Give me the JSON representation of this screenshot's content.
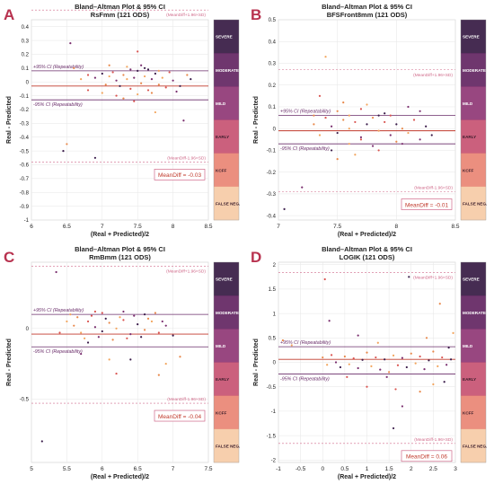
{
  "figure": {
    "ylabel": "Real - Predicted",
    "xlabel": "(Real + Predicted)/2",
    "panel_title_prefix": "Bland–Altman Plot & 95% CI",
    "colorbar_labels": [
      "SEVERE",
      "MODERATE",
      "MILD",
      "EARLY",
      "KCFF",
      "FALSE NEG."
    ],
    "colorbar_colors": [
      "#2c0f3a",
      "#5b1a5a",
      "#8a2d6e",
      "#c44a6b",
      "#e87f6d",
      "#f6c8a2"
    ],
    "colors": {
      "scatter": [
        "#e8884a",
        "#f2a45c",
        "#d9534f",
        "#7a2e6e",
        "#3a1c4a"
      ],
      "ci": "#6a2d6a",
      "sd": "#d06a8a",
      "mean": "#c0392b",
      "panel_letter": "#b8324f"
    }
  },
  "chart_data": [
    {
      "letter": "A",
      "type": "scatter",
      "title": "Bland–Altman Plot & 95% CI",
      "subtitle": "RsFmm  (121 ODS)",
      "xlabel": "(Real + Predicted)/2",
      "ylabel": "Real - Predicted",
      "xlim": [
        6,
        8.5
      ],
      "ylim": [
        -1,
        0.45
      ],
      "xticks": [
        "6",
        "6.5",
        "7",
        "7.5",
        "8",
        "8.5"
      ],
      "xtick_values": [
        6,
        6.5,
        7,
        7.5,
        8,
        8.5
      ],
      "yticks": [
        "0.4",
        "0.3",
        "0.2",
        "0.1",
        "0",
        "-0.1",
        "-0.2",
        "-0.3",
        "-0.4",
        "-0.5",
        "-0.6",
        "-0.7",
        "-0.8",
        "-0.9",
        "-1"
      ],
      "ytick_values": [
        0.4,
        0.3,
        0.2,
        0.1,
        0,
        -0.1,
        -0.2,
        -0.3,
        -0.4,
        -0.5,
        -0.6,
        -0.7,
        -0.8,
        -0.9,
        -1
      ],
      "sd_upper": 0.52,
      "sd_lower": -0.58,
      "ci_upper": 0.08,
      "ci_lower": -0.13,
      "mean": -0.03,
      "sd_upper_label": "(MeanDiff+1.96×SD)",
      "sd_lower_label": "(MeanDiff-1.96×SD)",
      "ci_upper_label": "+95% CI (Repeatability)",
      "ci_lower_label": "-95% CI (Repeatability)",
      "meandiff_label": "MeanDiff = -0.03",
      "points": [
        [
          6.6,
          0.1
        ],
        [
          6.7,
          0.02
        ],
        [
          6.8,
          0.05
        ],
        [
          6.9,
          0.03
        ],
        [
          7.0,
          0.06
        ],
        [
          7.05,
          -0.02
        ],
        [
          7.1,
          0.04
        ],
        [
          7.15,
          0.07
        ],
        [
          7.2,
          0.01
        ],
        [
          7.25,
          -0.03
        ],
        [
          7.3,
          0.05
        ],
        [
          7.35,
          0.02
        ],
        [
          7.4,
          -0.05
        ],
        [
          7.45,
          0.03
        ],
        [
          7.5,
          0.08
        ],
        [
          7.55,
          -0.01
        ],
        [
          7.6,
          0.04
        ],
        [
          7.65,
          -0.06
        ],
        [
          7.7,
          0.02
        ],
        [
          7.75,
          0.06
        ],
        [
          7.8,
          -0.02
        ],
        [
          7.85,
          0.03
        ],
        [
          7.9,
          -0.04
        ],
        [
          8.0,
          0.01
        ],
        [
          8.1,
          -0.03
        ],
        [
          8.2,
          0.05
        ],
        [
          7.0,
          -0.08
        ],
        [
          7.2,
          -0.1
        ],
        [
          7.4,
          0.09
        ],
        [
          7.6,
          0.1
        ],
        [
          7.3,
          -0.12
        ],
        [
          7.5,
          -0.09
        ],
        [
          6.8,
          -0.06
        ],
        [
          6.55,
          0.28
        ],
        [
          6.45,
          -0.5
        ],
        [
          6.5,
          -0.45
        ],
        [
          7.75,
          -0.22
        ],
        [
          7.5,
          0.22
        ],
        [
          8.15,
          -0.28
        ],
        [
          6.9,
          -0.55
        ],
        [
          7.1,
          0.12
        ],
        [
          7.35,
          0.11
        ],
        [
          7.45,
          -0.14
        ],
        [
          7.55,
          0.12
        ],
        [
          7.65,
          0.09
        ],
        [
          7.7,
          -0.08
        ],
        [
          7.8,
          0.08
        ],
        [
          7.95,
          0.07
        ],
        [
          8.05,
          -0.07
        ],
        [
          8.25,
          0.02
        ]
      ]
    },
    {
      "letter": "B",
      "type": "scatter",
      "title": "Bland–Altman Plot & 95% CI",
      "subtitle": "BFSFront8mm  (121 ODS)",
      "xlabel": "(Real + Predicted)/2",
      "ylabel": "Real - Predicted",
      "xlim": [
        7,
        8.5
      ],
      "ylim": [
        -0.42,
        0.5
      ],
      "xticks": [
        "7",
        "7.5",
        "8",
        "8.5"
      ],
      "xtick_values": [
        7,
        7.5,
        8,
        8.5
      ],
      "yticks": [
        "0.5",
        "0.4",
        "0.3",
        "0.2",
        "0.1",
        "0",
        "-0.1",
        "-0.2",
        "-0.3",
        "-0.4"
      ],
      "ytick_values": [
        0.5,
        0.4,
        0.3,
        0.2,
        0.1,
        0,
        -0.1,
        -0.2,
        -0.3,
        -0.4
      ],
      "sd_upper": 0.27,
      "sd_lower": -0.29,
      "ci_upper": 0.06,
      "ci_lower": -0.07,
      "mean": -0.01,
      "sd_upper_label": "(MeanDiff+1.96×SD)",
      "sd_lower_label": "(MeanDiff-1.96×SD)",
      "ci_upper_label": "+95% CI (Repeatability)",
      "ci_lower_label": "-95% CI (Repeatability)",
      "meandiff_label": "MeanDiff = -0.01",
      "points": [
        [
          7.3,
          0.02
        ],
        [
          7.35,
          -0.03
        ],
        [
          7.4,
          0.05
        ],
        [
          7.45,
          0.01
        ],
        [
          7.5,
          -0.02
        ],
        [
          7.55,
          0.04
        ],
        [
          7.6,
          0.0
        ],
        [
          7.65,
          0.03
        ],
        [
          7.7,
          -0.04
        ],
        [
          7.75,
          0.02
        ],
        [
          7.8,
          0.05
        ],
        [
          7.85,
          -0.01
        ],
        [
          7.9,
          0.03
        ],
        [
          7.95,
          -0.03
        ],
        [
          8.0,
          0.02
        ],
        [
          8.05,
          0.0
        ],
        [
          8.1,
          -0.02
        ],
        [
          8.15,
          0.04
        ],
        [
          8.2,
          -0.05
        ],
        [
          8.25,
          0.01
        ],
        [
          7.5,
          0.08
        ],
        [
          7.6,
          -0.07
        ],
        [
          7.7,
          0.09
        ],
        [
          7.8,
          -0.08
        ],
        [
          7.9,
          0.07
        ],
        [
          8.0,
          -0.06
        ],
        [
          7.4,
          0.33
        ],
        [
          7.35,
          0.15
        ],
        [
          7.2,
          -0.27
        ],
        [
          7.05,
          -0.37
        ],
        [
          7.5,
          -0.14
        ],
        [
          7.65,
          -0.12
        ],
        [
          7.85,
          -0.1
        ],
        [
          8.1,
          0.1
        ],
        [
          7.45,
          -0.1
        ],
        [
          7.55,
          0.12
        ],
        [
          7.75,
          0.11
        ],
        [
          7.95,
          0.06
        ],
        [
          8.2,
          0.08
        ],
        [
          8.3,
          -0.03
        ],
        [
          7.3,
          0.06
        ],
        [
          7.6,
          0.06
        ],
        [
          7.7,
          -0.05
        ],
        [
          8.05,
          -0.07
        ],
        [
          7.85,
          0.06
        ]
      ]
    },
    {
      "letter": "C",
      "type": "scatter",
      "title": "Bland–Altman Plot & 95% CI",
      "subtitle": "RmBmm  (121 ODS)",
      "xlabel": "(Real + Predicted)/2",
      "ylabel": "Real - Predicted",
      "xlim": [
        5,
        7.5
      ],
      "ylim": [
        -0.95,
        0.47
      ],
      "xticks": [
        "5",
        "5.5",
        "6",
        "6.5",
        "7",
        "7.5"
      ],
      "xtick_values": [
        5,
        5.5,
        6,
        6.5,
        7,
        7.5
      ],
      "yticks": [
        "0",
        "-0.5"
      ],
      "ytick_values": [
        0,
        -0.5
      ],
      "sd_upper": 0.44,
      "sd_lower": -0.53,
      "ci_upper": 0.1,
      "ci_lower": -0.13,
      "mean": -0.04,
      "sd_upper_label": "(MeanDiff+1.96×SD)",
      "sd_lower_label": "(MeanDiff-1.96×SD)",
      "ci_upper_label": "+95% CI (Repeatability)",
      "ci_lower_label": "-95% CI (Repeatability)",
      "meandiff_label": "MeanDiff = -0.04",
      "points": [
        [
          5.6,
          0.02
        ],
        [
          5.7,
          -0.03
        ],
        [
          5.8,
          0.05
        ],
        [
          5.9,
          0.01
        ],
        [
          6.0,
          -0.02
        ],
        [
          6.1,
          0.04
        ],
        [
          6.2,
          0.0
        ],
        [
          6.3,
          0.06
        ],
        [
          6.4,
          -0.04
        ],
        [
          6.5,
          0.03
        ],
        [
          6.6,
          -0.01
        ],
        [
          6.7,
          0.05
        ],
        [
          6.8,
          -0.03
        ],
        [
          6.9,
          0.02
        ],
        [
          7.0,
          -0.05
        ],
        [
          5.65,
          0.08
        ],
        [
          5.75,
          -0.07
        ],
        [
          5.85,
          0.09
        ],
        [
          5.95,
          -0.06
        ],
        [
          6.05,
          0.07
        ],
        [
          6.15,
          -0.08
        ],
        [
          6.25,
          0.08
        ],
        [
          6.35,
          -0.07
        ],
        [
          6.45,
          0.09
        ],
        [
          6.55,
          -0.06
        ],
        [
          6.65,
          0.07
        ],
        [
          5.5,
          0.05
        ],
        [
          5.4,
          -0.03
        ],
        [
          5.35,
          0.4
        ],
        [
          5.15,
          -0.8
        ],
        [
          6.8,
          -0.33
        ],
        [
          6.1,
          -0.22
        ],
        [
          6.2,
          -0.32
        ],
        [
          5.7,
          -0.18
        ],
        [
          6.4,
          -0.22
        ],
        [
          7.1,
          -0.2
        ],
        [
          6.9,
          -0.25
        ],
        [
          5.9,
          0.12
        ],
        [
          6.3,
          0.12
        ],
        [
          6.6,
          0.1
        ],
        [
          6.75,
          0.11
        ],
        [
          5.55,
          0.1
        ],
        [
          6.0,
          0.11
        ],
        [
          6.85,
          0.05
        ],
        [
          5.8,
          -0.1
        ]
      ]
    },
    {
      "letter": "D",
      "type": "scatter",
      "title": "Bland–Altman Plot & 95% CI",
      "subtitle": "LOGIK  (121 ODS)",
      "xlabel": "(Real + Predicted)/2",
      "ylabel": "Real - Predicted",
      "xlim": [
        -1,
        3
      ],
      "ylim": [
        -2.05,
        2.05
      ],
      "xticks": [
        "-1",
        "-0.5",
        "0",
        "0.5",
        "1",
        "1.5",
        "2",
        "2.5",
        "3"
      ],
      "xtick_values": [
        -1,
        -0.5,
        0,
        0.5,
        1,
        1.5,
        2,
        2.5,
        3
      ],
      "yticks": [
        "2",
        "1.5",
        "1",
        "0.5",
        "0",
        "-0.5",
        "-1",
        "-1.5",
        "-2"
      ],
      "ytick_values": [
        2,
        1.5,
        1,
        0.5,
        0,
        -0.5,
        -1,
        -1.5,
        -2
      ],
      "sd_upper": 1.84,
      "sd_lower": -1.66,
      "ci_upper": 0.32,
      "ci_lower": -0.24,
      "mean": 0.06,
      "sd_upper_label": "(MeanDiff+1.96×SD)",
      "sd_lower_label": "(MeanDiff-1.96×SD)",
      "ci_upper_label": "+95% CI (Repeatability)",
      "ci_lower_label": "-95% CI (Repeatability)",
      "meandiff_label": "MeanDiff = 0.06",
      "points": [
        [
          0.0,
          0.1
        ],
        [
          0.1,
          -0.05
        ],
        [
          0.2,
          0.15
        ],
        [
          0.3,
          0.0
        ],
        [
          0.4,
          -0.1
        ],
        [
          0.5,
          0.12
        ],
        [
          0.6,
          -0.04
        ],
        [
          0.7,
          0.08
        ],
        [
          0.8,
          -0.12
        ],
        [
          0.9,
          0.05
        ],
        [
          1.0,
          0.2
        ],
        [
          1.1,
          -0.08
        ],
        [
          1.2,
          0.1
        ],
        [
          1.3,
          -0.15
        ],
        [
          1.4,
          0.06
        ],
        [
          1.5,
          -0.2
        ],
        [
          1.6,
          0.14
        ],
        [
          1.7,
          -0.06
        ],
        [
          1.8,
          0.09
        ],
        [
          1.9,
          -0.1
        ],
        [
          2.0,
          0.18
        ],
        [
          2.1,
          -0.02
        ],
        [
          2.2,
          0.12
        ],
        [
          2.3,
          -0.14
        ],
        [
          2.4,
          0.04
        ],
        [
          2.5,
          0.22
        ],
        [
          2.6,
          -0.08
        ],
        [
          2.7,
          0.1
        ],
        [
          2.8,
          -0.05
        ],
        [
          2.9,
          0.06
        ],
        [
          -0.9,
          0.45
        ],
        [
          -0.7,
          0.35
        ],
        [
          0.05,
          1.7
        ],
        [
          0.15,
          0.85
        ],
        [
          1.95,
          1.75
        ],
        [
          2.65,
          1.2
        ],
        [
          2.95,
          0.6
        ],
        [
          1.65,
          -0.55
        ],
        [
          1.8,
          -0.9
        ],
        [
          1.6,
          -1.35
        ],
        [
          2.2,
          -0.6
        ],
        [
          2.5,
          -0.45
        ],
        [
          1.0,
          -0.5
        ],
        [
          0.8,
          0.55
        ],
        [
          2.85,
          0.3
        ],
        [
          2.35,
          0.5
        ],
        [
          1.25,
          0.4
        ],
        [
          0.55,
          -0.3
        ],
        [
          1.45,
          -0.3
        ],
        [
          2.75,
          -0.4
        ]
      ]
    }
  ]
}
